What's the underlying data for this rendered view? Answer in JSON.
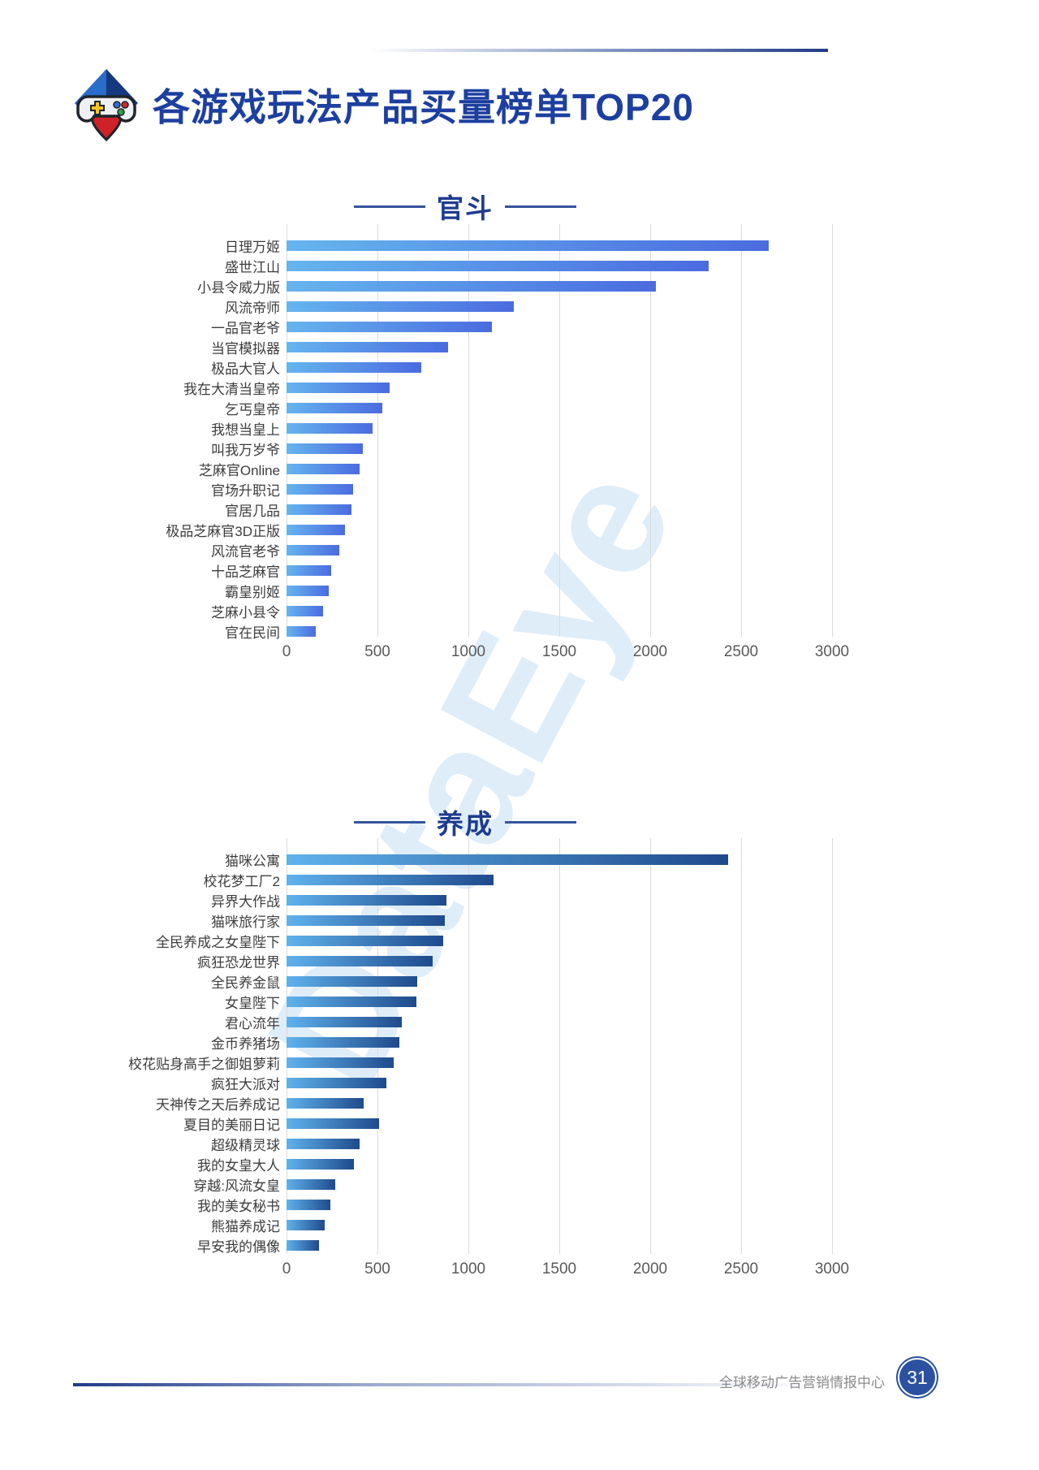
{
  "header": {
    "title": "各游戏玩法产品买量榜单TOP20"
  },
  "watermark": {
    "text": "DataEye"
  },
  "footer": {
    "center_name": "全球移动广告营销情报中心",
    "page_number": "31"
  },
  "colors": {
    "title_navy": "#1d3fa0",
    "chart1_bar_start": "#65b5ee",
    "chart1_bar_end": "#4b6be0",
    "chart2_bar_start": "#5fb2ec",
    "chart2_bar_end": "#1f4a8c",
    "gridline": "#dadada"
  },
  "chart_data": [
    {
      "type": "bar",
      "orientation": "horizontal",
      "title": "官斗",
      "categories": [
        "日理万姬",
        "盛世江山",
        "小县令威力版",
        "风流帝师",
        "一品官老爷",
        "当官模拟器",
        "极品大官人",
        "我在大清当皇帝",
        "乞丐皇帝",
        "我想当皇上",
        "叫我万岁爷",
        "芝麻官Online",
        "官场升职记",
        "官居几品",
        "极品芝麻官3D正版",
        "风流官老爷",
        "十品芝麻官",
        "霸皇别姬",
        "芝麻小县令",
        "官在民间"
      ],
      "values": [
        2650,
        2320,
        2030,
        1250,
        1130,
        890,
        740,
        565,
        525,
        475,
        420,
        400,
        365,
        355,
        320,
        290,
        245,
        230,
        200,
        160
      ],
      "xlabel": "",
      "ylabel": "",
      "xlim": [
        0,
        3000
      ],
      "ticks": [
        0,
        500,
        1000,
        1500,
        2000,
        2500,
        3000
      ],
      "grid": true,
      "legend": "none",
      "bar_gradient": [
        "#65b5ee",
        "#4b6be0"
      ]
    },
    {
      "type": "bar",
      "orientation": "horizontal",
      "title": "养成",
      "categories": [
        "猫咪公寓",
        "校花梦工厂2",
        "异界大作战",
        "猫咪旅行家",
        "全民养成之女皇陛下",
        "疯狂恐龙世界",
        "全民养金鼠",
        "女皇陛下",
        "君心流年",
        "金币养猪场",
        "校花贴身高手之御姐萝莉",
        "疯狂大派对",
        "天神传之天后养成记",
        "夏目的美丽日记",
        "超级精灵球",
        "我的女皇大人",
        "穿越:风流女皇",
        "我的美女秘书",
        "熊猫养成记",
        "早安我的偶像"
      ],
      "values": [
        2430,
        1140,
        880,
        870,
        860,
        805,
        720,
        715,
        635,
        620,
        590,
        550,
        425,
        510,
        400,
        370,
        270,
        240,
        210,
        180
      ],
      "xlabel": "",
      "ylabel": "",
      "xlim": [
        0,
        3000
      ],
      "ticks": [
        0,
        500,
        1000,
        1500,
        2000,
        2500,
        3000
      ],
      "grid": true,
      "legend": "none",
      "bar_gradient": [
        "#5fb2ec",
        "#1f4a8c"
      ]
    }
  ]
}
